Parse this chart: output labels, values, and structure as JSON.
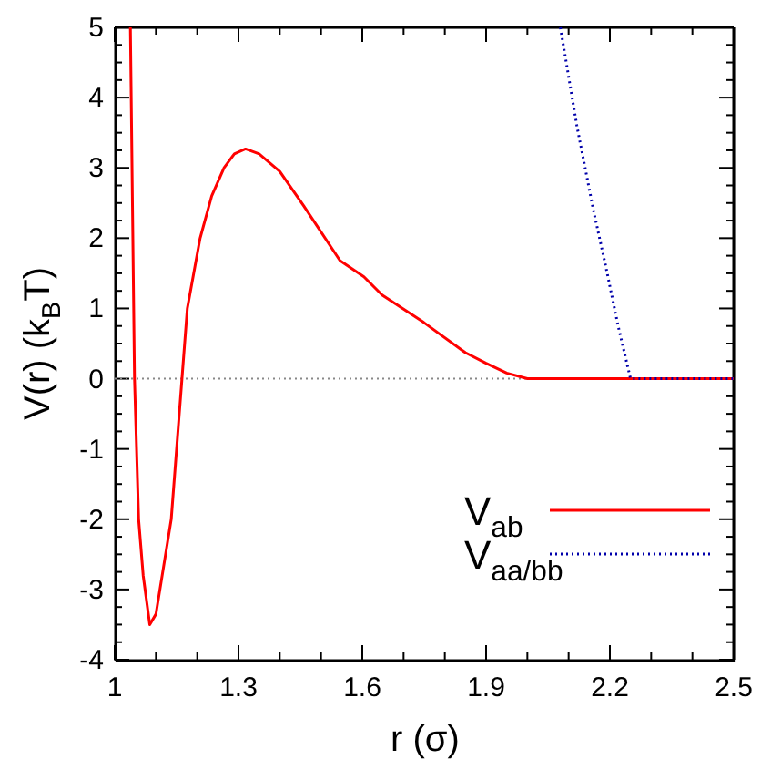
{
  "chart_data": {
    "type": "line",
    "xlabel": "r (σ)",
    "ylabel": "V(r) (k$_{B}$T)",
    "xlim": [
      1,
      2.5
    ],
    "ylim": [
      -4,
      5
    ],
    "xticks": [
      1,
      {
        "value": 1.1,
        "label": null
      },
      {
        "value": 1.2,
        "label": null
      },
      1.3,
      {
        "value": 1.4,
        "label": null
      },
      {
        "value": 1.5,
        "label": null
      },
      1.6,
      {
        "value": 1.7,
        "label": null
      },
      {
        "value": 1.8,
        "label": null
      },
      1.9,
      {
        "value": 2.0,
        "label": null
      },
      {
        "value": 2.1,
        "label": null
      },
      2.2,
      {
        "value": 2.3,
        "label": null
      },
      {
        "value": 2.4,
        "label": null
      },
      2.5
    ],
    "yticks": [
      -4,
      {
        "value": -3.75,
        "label": null
      },
      {
        "value": -3.5,
        "label": null
      },
      {
        "value": -3.25,
        "label": null
      },
      -3,
      {
        "value": -2.75,
        "label": null
      },
      {
        "value": -2.5,
        "label": null
      },
      {
        "value": -2.25,
        "label": null
      },
      -2,
      {
        "value": -1.75,
        "label": null
      },
      {
        "value": -1.5,
        "label": null
      },
      {
        "value": -1.25,
        "label": null
      },
      -1,
      {
        "value": -0.75,
        "label": null
      },
      {
        "value": -0.5,
        "label": null
      },
      {
        "value": -0.25,
        "label": null
      },
      0,
      {
        "value": 0.25,
        "label": null
      },
      {
        "value": 0.5,
        "label": null
      },
      {
        "value": 0.75,
        "label": null
      },
      1,
      {
        "value": 1.25,
        "label": null
      },
      {
        "value": 1.5,
        "label": null
      },
      {
        "value": 1.75,
        "label": null
      },
      2,
      {
        "value": 2.25,
        "label": null
      },
      {
        "value": 2.5,
        "label": null
      },
      {
        "value": 2.75,
        "label": null
      },
      3,
      {
        "value": 3.25,
        "label": null
      },
      {
        "value": 3.5,
        "label": null
      },
      {
        "value": 3.75,
        "label": null
      },
      4,
      {
        "value": 4.25,
        "label": null
      },
      {
        "value": 4.5,
        "label": null
      },
      {
        "value": 4.75,
        "label": null
      },
      5
    ],
    "grid": false,
    "legend": "bottom right",
    "ref_lines": [
      {
        "axis": "y",
        "value": 0,
        "color": "#888888",
        "line_style": "dotted"
      }
    ],
    "series": [
      {
        "name": "V$_{ab}$",
        "color": "#ff0000",
        "line_style": "solid",
        "x": [
          1.038,
          1.048,
          1.058,
          1.069,
          1.085,
          1.1,
          1.137,
          1.163,
          1.176,
          1.207,
          1.235,
          1.265,
          1.29,
          1.317,
          1.35,
          1.4,
          1.458,
          1.546,
          1.604,
          1.648,
          1.749,
          1.85,
          1.9,
          1.95,
          2.0,
          2.5
        ],
        "values": [
          5,
          0,
          -2,
          -2.8,
          -3.5,
          -3.35,
          -2,
          0,
          1,
          2,
          2.6,
          3,
          3.2,
          3.27,
          3.2,
          2.95,
          2.46,
          1.68,
          1.45,
          1.19,
          0.8,
          0.37,
          0.22,
          0.08,
          0,
          0
        ]
      },
      {
        "name": "V$_{aa/bb}$",
        "color": "#0000aa",
        "line_style": "dotted",
        "x": [
          2.08,
          2.12,
          2.16,
          2.19,
          2.22,
          2.25,
          2.5
        ],
        "values": [
          5,
          3.6,
          2.4,
          1.6,
          0.75,
          0,
          0
        ]
      }
    ]
  }
}
